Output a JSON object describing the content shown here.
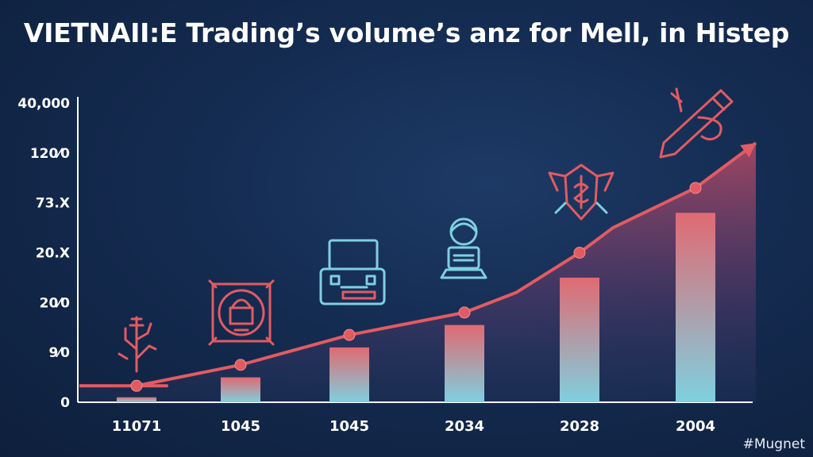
{
  "title": "VIETNAII:E Trading’s volume’s anz for Mell, in Histep",
  "watermark": "#Mugnet",
  "colors": {
    "background": "#142b50",
    "line": "#e25b62",
    "bar_top": "#e06a72",
    "bar_bottom": "#7fd0e0",
    "icon_red": "#e25b62",
    "icon_teal": "#7fd0e0"
  },
  "icons": [
    "plant-icon",
    "padlock-icon",
    "radio-icon",
    "person-laptop-icon",
    "shield-emblem-icon",
    "pencil-icon"
  ],
  "chart_data": {
    "type": "bar",
    "title": "VIETNAII:E Trading’s volume’s anz for Mell, in Histep",
    "xlabel": "",
    "ylabel": "",
    "y_tick_labels": [
      "0",
      "9⁄0",
      "20⁄0",
      "20.X",
      "73.X",
      "120⁄0",
      "40,000"
    ],
    "categories": [
      "11071",
      "1045",
      "1045",
      "2034",
      "2028",
      "2004"
    ],
    "series": [
      {
        "values": [
          1,
          5,
          11,
          15.5,
          25,
          38
        ]
      }
    ],
    "line_values": [
      3.3,
      7.5,
      13.5,
      18,
      30,
      43
    ],
    "line_start_value": 3.3,
    "line_end_value": 52,
    "ylim": [
      0,
      60
    ],
    "grid": false,
    "legend": "none"
  }
}
